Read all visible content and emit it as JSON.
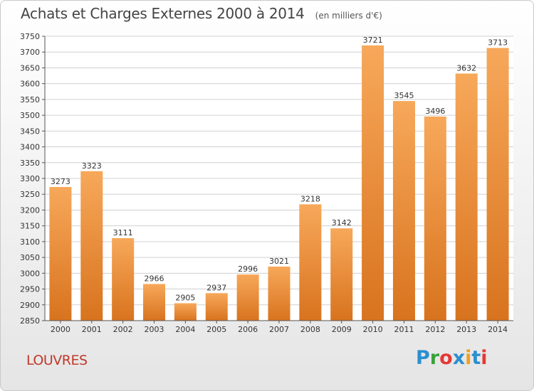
{
  "header": {
    "title": "Achats et Charges Externes 2000 à 2014",
    "unit": "(en milliers d'€)"
  },
  "footer": {
    "city": "LOUVRES",
    "logo_letters": [
      "P",
      "r",
      "o",
      "x",
      "i",
      "t",
      "i"
    ],
    "logo_colors": [
      "#2a8fd0",
      "#3aa13a",
      "#e53935",
      "#2a8fd0",
      "#f0a020",
      "#2a8fd0",
      "#e53935"
    ]
  },
  "colors": {
    "bar_light": "#f7a85a",
    "bar_dark": "#d8731e",
    "grid": "#d0d0d0",
    "axis": "#555555"
  },
  "chart_data": {
    "type": "bar",
    "title": "Achats et Charges Externes 2000 à 2014",
    "subtitle": "(en milliers d'€)",
    "categories": [
      "2000",
      "2001",
      "2002",
      "2003",
      "2004",
      "2005",
      "2006",
      "2007",
      "2008",
      "2009",
      "2010",
      "2011",
      "2012",
      "2013",
      "2014"
    ],
    "values": [
      3273,
      3323,
      3111,
      2966,
      2905,
      2937,
      2996,
      3021,
      3218,
      3142,
      3721,
      3545,
      3496,
      3632,
      3713
    ],
    "ylim": [
      2850,
      3750
    ],
    "ytick_step": 50,
    "grid": true,
    "data_labels": true
  }
}
